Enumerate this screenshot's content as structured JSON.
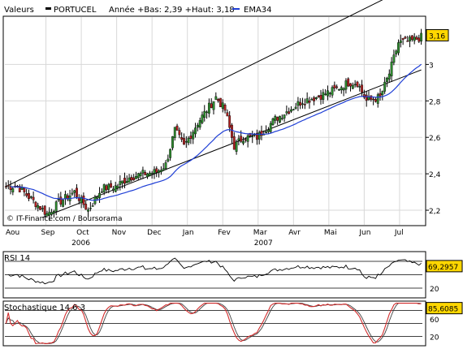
{
  "header": {
    "valeurs_label": "Valeurs",
    "ticker": "PORTUCEL",
    "range_text": "Année +Bas: 2,39 +Haut: 3,18",
    "ema_label": "EMA34"
  },
  "watermark": "© IT-Finance.com / Boursorama",
  "colors": {
    "up": "#2e8b2e",
    "down": "#b22222",
    "ema": "#1f3fd6",
    "badge": "#ffd700",
    "stoch_k": "#d22c2c",
    "stoch_d": "#404040",
    "grid": "#d8d8d8"
  },
  "chart_data": [
    {
      "type": "candlestick",
      "title": "PORTUCEL",
      "ylim": [
        2.12,
        3.26
      ],
      "y_ticks": [
        2.2,
        2.4,
        2.6,
        2.8,
        3.0
      ],
      "y_tick_labels": [
        "2,2",
        "2,4",
        "2,6",
        "2,8",
        "3"
      ],
      "last_value_label": "3,16",
      "last_value": 3.16,
      "x_month_labels": [
        "Aou",
        "Sep",
        "Oct",
        "Nov",
        "Dec",
        "Jan",
        "Fev",
        "Mar",
        "Avr",
        "Mai",
        "Jun",
        "Jul"
      ],
      "year_labels": [
        "2006",
        "2007"
      ],
      "grid": true,
      "anchors": [
        [
          0,
          2.33
        ],
        [
          5,
          2.33
        ],
        [
          12,
          2.25
        ],
        [
          18,
          2.18
        ],
        [
          24,
          2.25
        ],
        [
          30,
          2.3
        ],
        [
          36,
          2.2
        ],
        [
          42,
          2.32
        ],
        [
          48,
          2.33
        ],
        [
          54,
          2.38
        ],
        [
          60,
          2.4
        ],
        [
          66,
          2.41
        ],
        [
          70,
          2.45
        ],
        [
          74,
          2.64
        ],
        [
          78,
          2.55
        ],
        [
          84,
          2.68
        ],
        [
          92,
          2.82
        ],
        [
          96,
          2.75
        ],
        [
          100,
          2.55
        ],
        [
          104,
          2.6
        ],
        [
          110,
          2.6
        ],
        [
          118,
          2.7
        ],
        [
          124,
          2.75
        ],
        [
          130,
          2.8
        ],
        [
          136,
          2.82
        ],
        [
          144,
          2.86
        ],
        [
          150,
          2.9
        ],
        [
          154,
          2.9
        ],
        [
          158,
          2.8
        ],
        [
          164,
          2.82
        ],
        [
          168,
          2.95
        ],
        [
          172,
          3.12
        ],
        [
          178,
          3.13
        ],
        [
          182,
          3.15
        ]
      ],
      "ema_period": 34,
      "series": [
        {
          "name": "EMA34",
          "type": "line"
        }
      ],
      "trend_channel": {
        "upper": [
          [
            0,
            2.33
          ],
          [
            182,
            3.46
          ]
        ],
        "lower": [
          [
            16,
            2.16
          ],
          [
            182,
            2.97
          ]
        ]
      }
    },
    {
      "type": "line",
      "title": "RSI 14",
      "last_value_label": "69,2957",
      "last_value": 69.2957,
      "ylim": [
        0,
        100
      ],
      "y_ticks": [
        20
      ],
      "y_tick_labels": [
        "20"
      ],
      "reference_lines": [
        80,
        50,
        20
      ]
    },
    {
      "type": "line",
      "title": "Stochastique 14 6 3",
      "last_value_label": "85,6085",
      "last_value": 85.6085,
      "ylim": [
        0,
        100
      ],
      "y_ticks": [
        60,
        20
      ],
      "y_tick_labels": [
        "60",
        "20"
      ],
      "reference_lines": [
        80,
        50,
        20
      ],
      "series": [
        {
          "name": "%K"
        },
        {
          "name": "%D"
        }
      ]
    }
  ]
}
